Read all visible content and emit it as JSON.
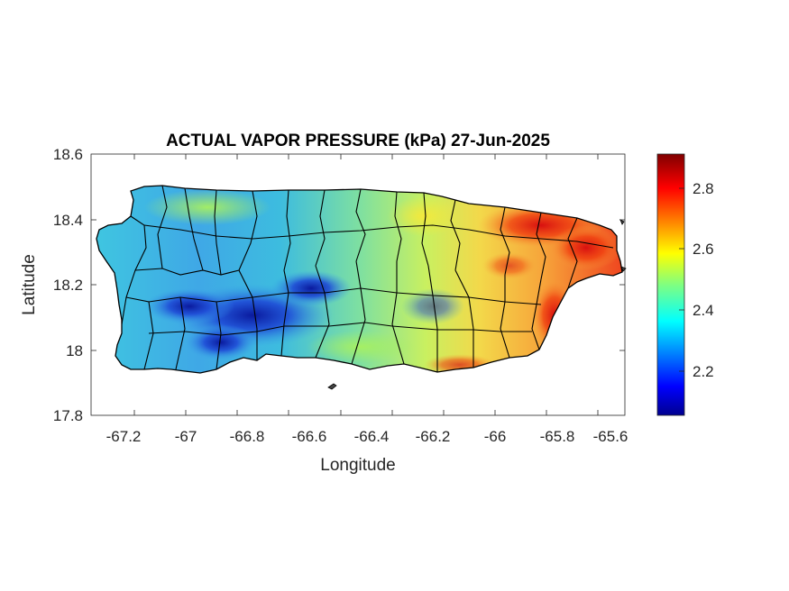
{
  "map": {
    "title": "ACTUAL VAPOR PRESSURE (kPa) 27-Jun-2025",
    "xlabel": "Longitude",
    "ylabel": "Latitude",
    "region": "Puerto Rico",
    "x_ticks": [
      "-67.2",
      "-67",
      "-66.8",
      "-66.6",
      "-66.4",
      "-66.2",
      "-66",
      "-65.8",
      "-65.6"
    ],
    "y_ticks": [
      "18.6",
      "18.4",
      "18.2",
      "18",
      "17.8"
    ],
    "xlim": [
      -67.3,
      -65.58
    ],
    "ylim": [
      17.8,
      18.6
    ],
    "colorbar": {
      "colormap": "jet",
      "range": [
        2.05,
        2.91
      ],
      "ticks": [
        "2.8",
        "2.6",
        "2.4",
        "2.2"
      ]
    },
    "colors": {
      "low": "#00008f",
      "mid": "#f5f500",
      "high": "#800000",
      "boundary": "#000000"
    }
  }
}
